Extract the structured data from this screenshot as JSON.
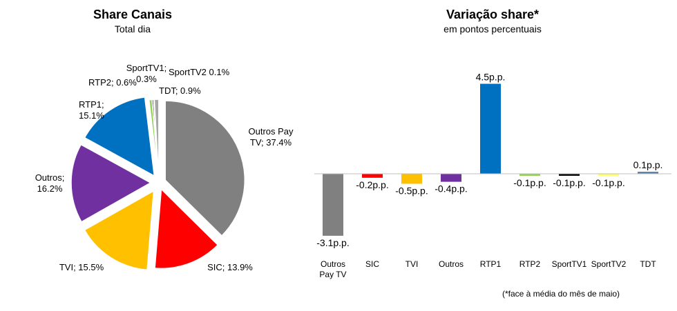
{
  "chart_data": [
    {
      "type": "pie",
      "title": "Share Canais",
      "subtitle": "Total dia",
      "categories": [
        "Outros Pay TV",
        "SIC",
        "TVI",
        "Outros",
        "RTP1",
        "RTP2",
        "SportTV1",
        "SportTV2",
        "TDT"
      ],
      "values": [
        37.4,
        13.9,
        15.5,
        16.2,
        15.1,
        0.6,
        0.3,
        0.1,
        0.9
      ],
      "data_labels": [
        [
          "Outros Pay",
          "TV; 37.4%"
        ],
        [
          "SIC; 13.9%"
        ],
        [
          "TVI; 15.5%"
        ],
        [
          "Outros;",
          "16.2%"
        ],
        [
          "RTP1;",
          "15.1%"
        ],
        [
          "RTP2; 0.6%"
        ],
        [
          "SportTV1;",
          "0.3%"
        ],
        [
          "SportTV2 0.1%"
        ],
        [
          "TDT; 0.9%"
        ]
      ],
      "colors": [
        "#808080",
        "#FF0000",
        "#FFC000",
        "#7030A0",
        "#0070C0",
        "#92D050",
        "#000000",
        "#FFFF66",
        "#A6A6A6"
      ],
      "exploded": true
    },
    {
      "type": "bar",
      "title": "Variação share*",
      "subtitle": "em pontos percentuais",
      "categories": [
        "Outros Pay TV",
        "SIC",
        "TVI",
        "Outros",
        "RTP1",
        "RTP2",
        "SportTV1",
        "SportTV2",
        "TDT"
      ],
      "category_labels": [
        [
          "Outros",
          "Pay TV"
        ],
        [
          "SIC"
        ],
        [
          "TVI"
        ],
        [
          "Outros"
        ],
        [
          "RTP1"
        ],
        [
          "RTP2"
        ],
        [
          "SportTV1"
        ],
        [
          "SportTV2"
        ],
        [
          "TDT"
        ]
      ],
      "values": [
        -3.1,
        -0.2,
        -0.5,
        -0.4,
        4.5,
        -0.1,
        -0.1,
        -0.1,
        0.1
      ],
      "data_labels": [
        "-3.1p.p.",
        "-0.2p.p.",
        "-0.5p.p.",
        "-0.4p.p.",
        "4.5p.p.",
        "-0.1p.p.",
        "-0.1p.p.",
        "-0.1p.p.",
        "0.1p.p."
      ],
      "colors": [
        "#808080",
        "#FF0000",
        "#FFC000",
        "#7030A0",
        "#0070C0",
        "#92D050",
        "#000000",
        "#FFFF66",
        "#5B7FA6"
      ],
      "footnote": "(*face à média do mês de maio)",
      "grid": false,
      "legend": "none"
    }
  ]
}
